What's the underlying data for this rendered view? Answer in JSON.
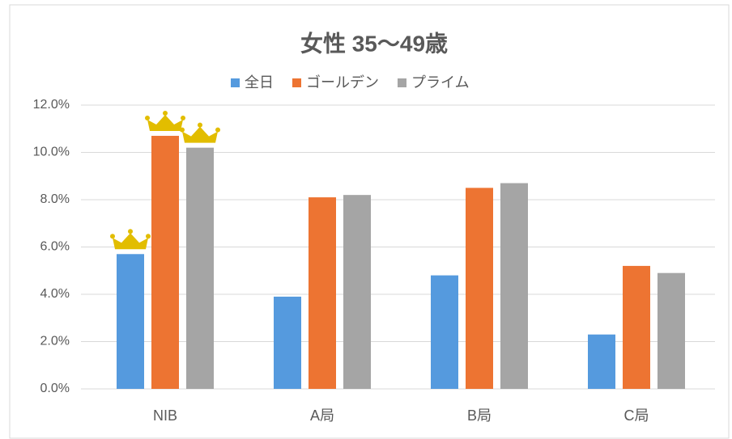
{
  "chart_data": {
    "type": "bar",
    "title": "女性 35〜49歳",
    "categories": [
      "NIB",
      "A局",
      "B局",
      "C局"
    ],
    "series": [
      {
        "name": "全日",
        "color": "#559ade",
        "values": [
          5.7,
          3.9,
          4.8,
          2.3
        ]
      },
      {
        "name": "ゴールデン",
        "color": "#ed7432",
        "values": [
          10.7,
          8.1,
          8.5,
          5.2
        ]
      },
      {
        "name": "プライム",
        "color": "#a5a5a5",
        "values": [
          10.2,
          8.2,
          8.7,
          4.9
        ]
      }
    ],
    "ylim": [
      0,
      12
    ],
    "yticks": [
      {
        "value": 0,
        "label": "0.0%"
      },
      {
        "value": 2,
        "label": "2.0%"
      },
      {
        "value": 4,
        "label": "4.0%"
      },
      {
        "value": 6,
        "label": "6.0%"
      },
      {
        "value": 8,
        "label": "8.0%"
      },
      {
        "value": 10,
        "label": "10.0%"
      },
      {
        "value": 12,
        "label": "12.0%"
      }
    ],
    "grid": true,
    "legend": "top"
  }
}
